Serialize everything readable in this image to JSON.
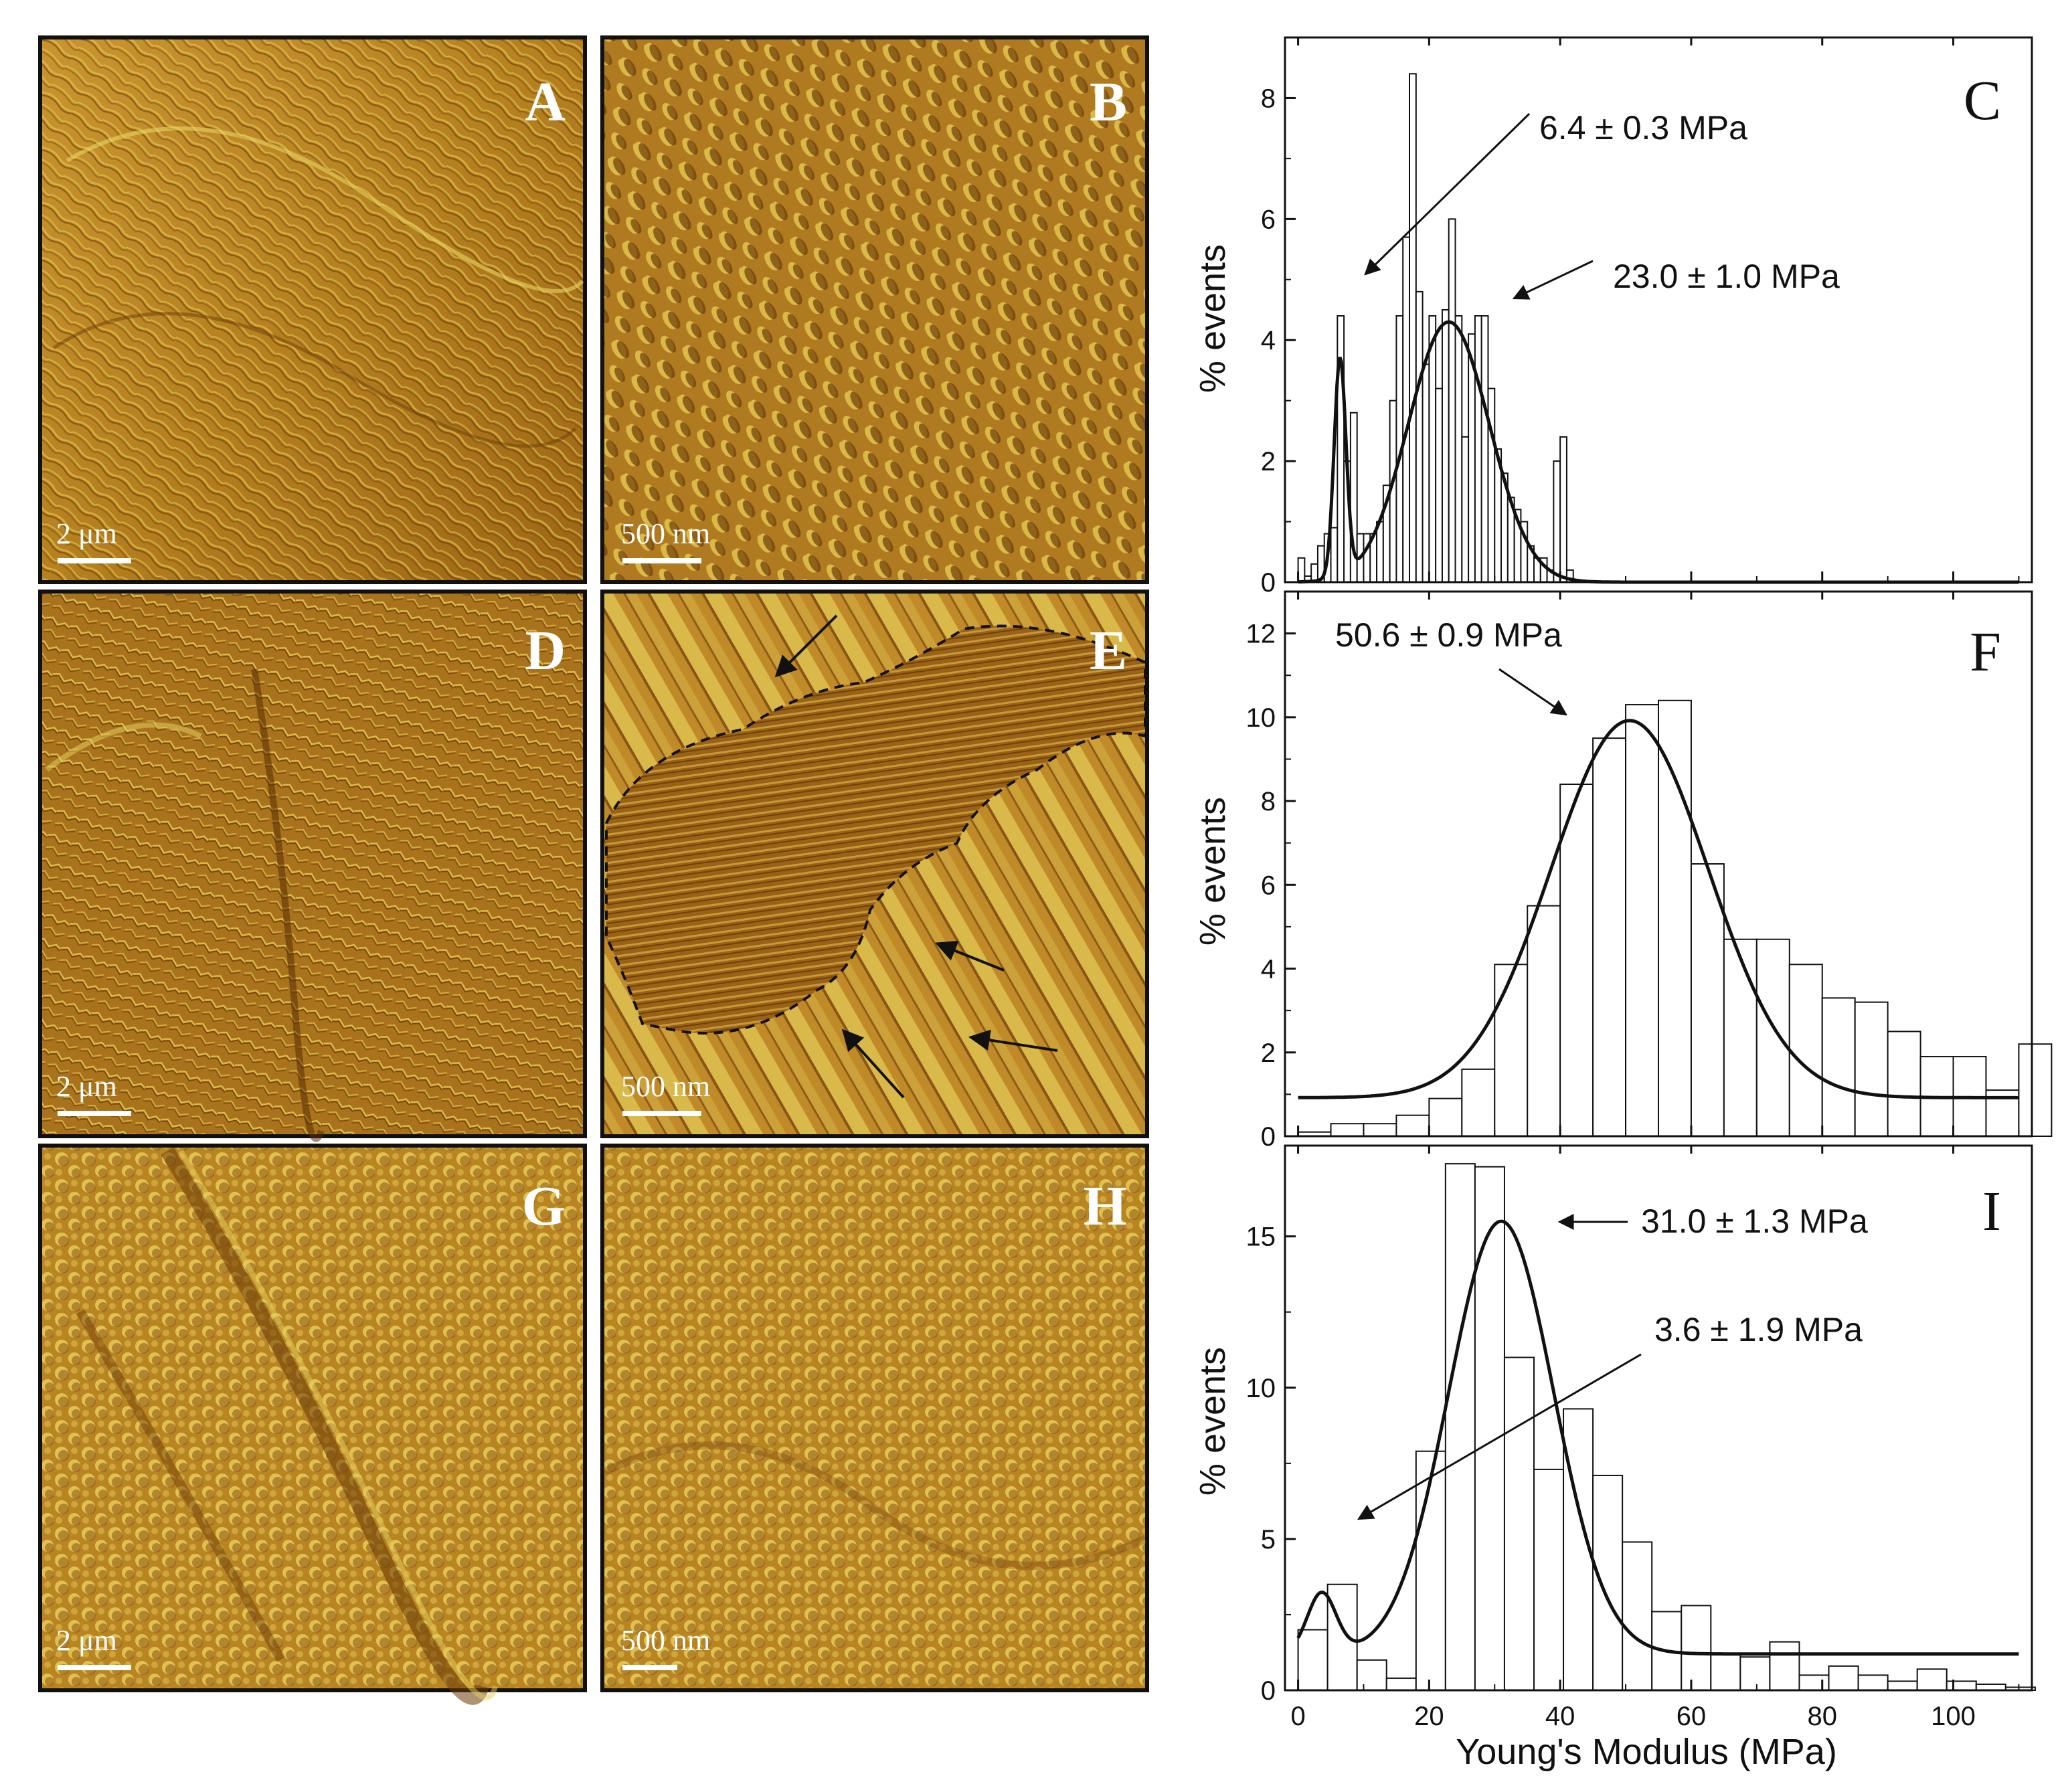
{
  "afm_panels": [
    {
      "label": "A",
      "scale_bar": "2 μm",
      "texture": "fine-wrinkles"
    },
    {
      "label": "B",
      "scale_bar": "500 nm",
      "texture": "ridges"
    },
    {
      "label": "D",
      "scale_bar": "2 μm",
      "texture": "crumpled"
    },
    {
      "label": "E",
      "scale_bar": "500 nm",
      "texture": "terraces"
    },
    {
      "label": "G",
      "scale_bar": "2 μm",
      "texture": "nodular"
    },
    {
      "label": "H",
      "scale_bar": "500 nm",
      "texture": "nodular"
    }
  ],
  "colors": {
    "afm_light": "#d9a940",
    "afm_mid": "#b27a22",
    "afm_dark": "#6e3f0b",
    "afm_highlight": "#e8d560",
    "bars_fill": "#ffffff",
    "line": "#111111"
  },
  "chart_data": [
    {
      "type": "bar",
      "panel": "C",
      "ylabel": "% events",
      "xlim": [
        -2,
        112
      ],
      "ylim": [
        0,
        9
      ],
      "yticks": [
        0,
        2,
        4,
        6,
        8
      ],
      "bin_width": 1,
      "bins_x": [
        0,
        1,
        2,
        3,
        4,
        5,
        6,
        7,
        8,
        9,
        10,
        11,
        12,
        13,
        14,
        15,
        16,
        17,
        18,
        19,
        20,
        21,
        22,
        23,
        24,
        25,
        26,
        27,
        28,
        29,
        30,
        31,
        32,
        33,
        34,
        35,
        36,
        37,
        38,
        39,
        40,
        41
      ],
      "values": [
        0.4,
        0.1,
        0.3,
        0.6,
        0.8,
        0.9,
        4.4,
        2.0,
        2.8,
        0.8,
        0.8,
        0.8,
        1.0,
        1.6,
        3.0,
        4.4,
        5.7,
        8.4,
        4.8,
        3.6,
        4.4,
        3.2,
        4.5,
        6.0,
        4.4,
        2.4,
        4.1,
        4.4,
        4.4,
        3.2,
        2.2,
        1.8,
        1.4,
        1.2,
        1.0,
        0.6,
        0.4,
        0.4,
        0.2,
        2.0,
        2.4,
        0.2
      ],
      "fit_peaks": [
        {
          "mean": 6.4,
          "sigma": 0.9,
          "amp": 3.6
        },
        {
          "mean": 23.0,
          "sigma": 6.2,
          "amp": 4.3
        }
      ],
      "annotations": [
        "6.4 ± 0.3 MPa",
        "23.0 ± 1.0 MPa"
      ]
    },
    {
      "type": "bar",
      "panel": "F",
      "ylabel": "% events",
      "xlim": [
        -2,
        112
      ],
      "ylim": [
        0,
        13
      ],
      "yticks": [
        0,
        2,
        4,
        6,
        8,
        10,
        12
      ],
      "bin_width": 5,
      "bins_x": [
        0,
        5,
        10,
        15,
        20,
        25,
        30,
        35,
        40,
        45,
        50,
        55,
        60,
        65,
        70,
        75,
        80,
        85,
        90,
        95,
        100,
        105,
        110
      ],
      "values": [
        0.1,
        0.3,
        0.3,
        0.5,
        0.9,
        1.6,
        4.1,
        5.5,
        8.4,
        9.5,
        10.3,
        10.4,
        6.5,
        4.7,
        4.7,
        4.1,
        3.3,
        3.2,
        2.5,
        1.9,
        1.9,
        1.1,
        2.2
      ],
      "fit_peaks": [
        {
          "mean": 50.6,
          "sigma": 12.0,
          "amp": 9.0
        }
      ],
      "baseline": 0.92,
      "annotations": [
        "50.6 ± 0.9 MPa"
      ]
    },
    {
      "type": "bar",
      "panel": "I",
      "ylabel": "% events",
      "xlabel": "Young's Modulus (MPa)",
      "xlim": [
        -2,
        112
      ],
      "ylim": [
        0,
        18
      ],
      "yticks": [
        0,
        5,
        10,
        15
      ],
      "xticks": [
        0,
        20,
        40,
        60,
        80,
        100
      ],
      "bin_width": 4.5,
      "bins_x": [
        0,
        4.5,
        9,
        13.5,
        18,
        22.5,
        27,
        31.5,
        36,
        40.5,
        45,
        49.5,
        54,
        58.5,
        63,
        67.5,
        72,
        76.5,
        81,
        85.5,
        90,
        94.5,
        99,
        103.5,
        108
      ],
      "values": [
        2.0,
        3.5,
        1.0,
        0.4,
        7.9,
        17.4,
        17.3,
        11.0,
        7.3,
        9.3,
        7.1,
        4.9,
        2.6,
        2.8,
        1.2,
        1.1,
        1.6,
        0.5,
        0.8,
        0.5,
        0.3,
        0.7,
        0.3,
        0.2,
        0.1
      ],
      "fit_peaks": [
        {
          "mean": 3.6,
          "sigma": 2.2,
          "amp": 2.0
        },
        {
          "mean": 31.0,
          "sigma": 8.0,
          "amp": 14.3
        }
      ],
      "baseline": 1.2,
      "annotations": [
        "31.0 ± 1.3 MPa",
        "3.6 ± 1.9 MPa"
      ]
    }
  ]
}
